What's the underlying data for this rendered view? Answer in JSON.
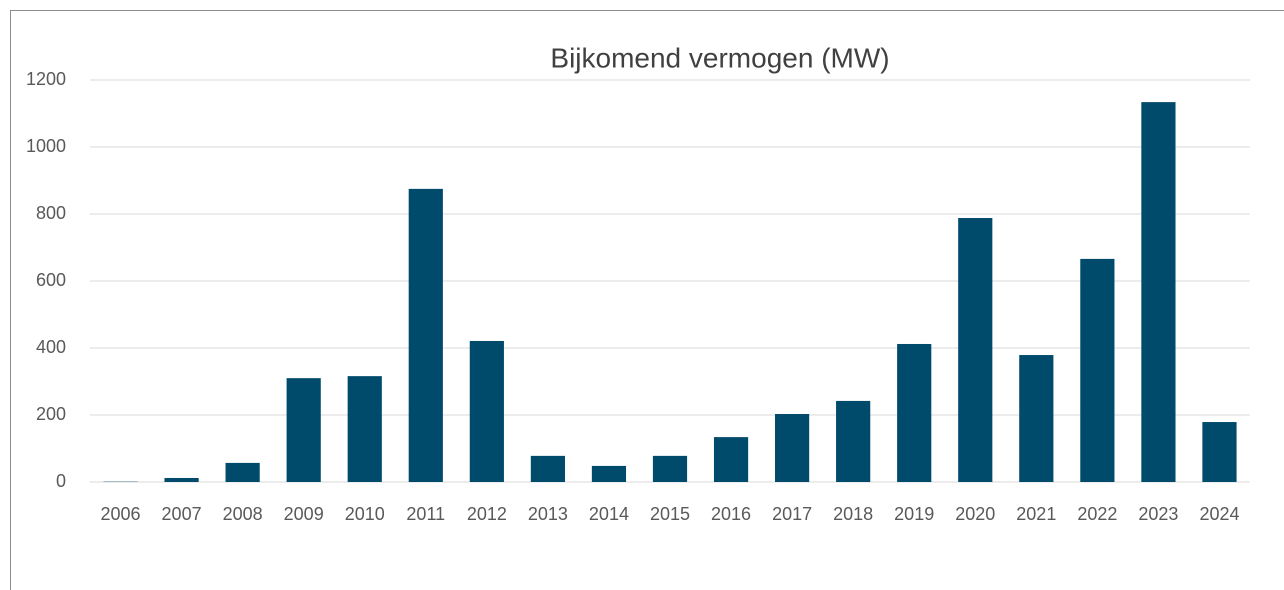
{
  "chart_data": {
    "type": "bar",
    "title": "Bijkomend vermogen (MW)",
    "categories": [
      "2006",
      "2007",
      "2008",
      "2009",
      "2010",
      "2011",
      "2012",
      "2013",
      "2014",
      "2015",
      "2016",
      "2017",
      "2018",
      "2019",
      "2020",
      "2021",
      "2022",
      "2023",
      "2024"
    ],
    "values": [
      1,
      12,
      57,
      310,
      316,
      875,
      421,
      78,
      48,
      78,
      134,
      203,
      242,
      412,
      788,
      379,
      666,
      1134,
      179
    ],
    "color": "#004b6b",
    "ylim": [
      0,
      1200
    ],
    "yticks": [
      0,
      200,
      400,
      600,
      800,
      1000,
      1200
    ],
    "grid": true
  }
}
